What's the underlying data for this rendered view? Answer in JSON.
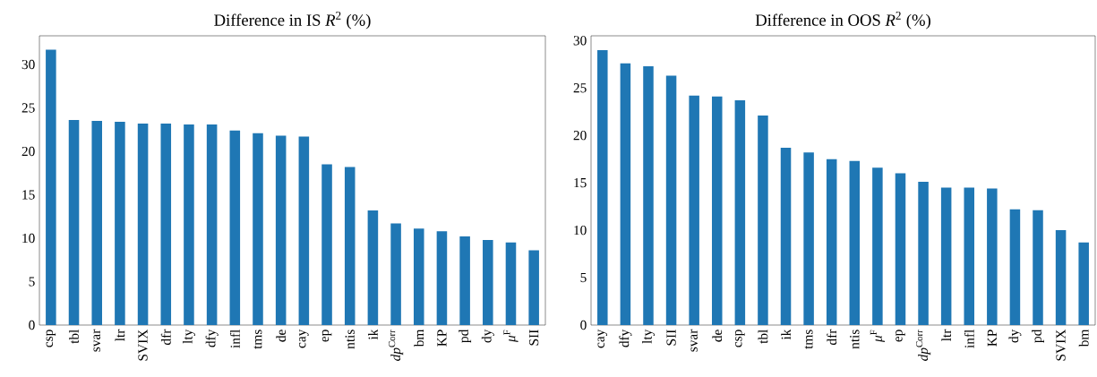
{
  "chart_data": [
    {
      "type": "bar",
      "title": "Difference in IS *R*$^{2}$ (%)",
      "categories": [
        "csp",
        "tbl",
        "svar",
        "ltr",
        "SVIX",
        "dfr",
        "lty",
        "dfy",
        "infl",
        "tms",
        "de",
        "cay",
        "ep",
        "ntis",
        "ik",
        "*dp*$^{Corr}$",
        "bm",
        "KP",
        "pd",
        "dy",
        "*μ*$^{F}$",
        "SII"
      ],
      "values": [
        31.7,
        23.6,
        23.5,
        23.4,
        23.2,
        23.2,
        23.1,
        23.1,
        22.4,
        22.1,
        21.8,
        21.7,
        18.5,
        18.2,
        13.2,
        11.7,
        11.1,
        10.8,
        10.2,
        9.8,
        9.5,
        8.6
      ],
      "color": "#1f77b4",
      "ylim": [
        0,
        33.3
      ],
      "yticks": [
        0,
        5,
        10,
        15,
        20,
        25,
        30
      ]
    },
    {
      "type": "bar",
      "title": "Difference in OOS *R*$^{2}$ (%)",
      "categories": [
        "cay",
        "dfy",
        "lty",
        "SII",
        "svar",
        "de",
        "csp",
        "tbl",
        "ik",
        "tms",
        "dfr",
        "ntis",
        "*μ*$^{F}$",
        "ep",
        "*dp*$^{Corr}$",
        "ltr",
        "infl",
        "KP",
        "dy",
        "pd",
        "SVIX",
        "bm"
      ],
      "values": [
        29.0,
        27.6,
        27.3,
        26.3,
        24.2,
        24.1,
        23.7,
        22.1,
        18.7,
        18.2,
        17.5,
        17.3,
        16.6,
        16.0,
        15.1,
        14.5,
        14.5,
        14.4,
        12.2,
        12.1,
        10.0,
        8.7
      ],
      "color": "#1f77b4",
      "ylim": [
        0,
        30.5
      ],
      "yticks": [
        0,
        5,
        10,
        15,
        20,
        25,
        30
      ]
    }
  ]
}
